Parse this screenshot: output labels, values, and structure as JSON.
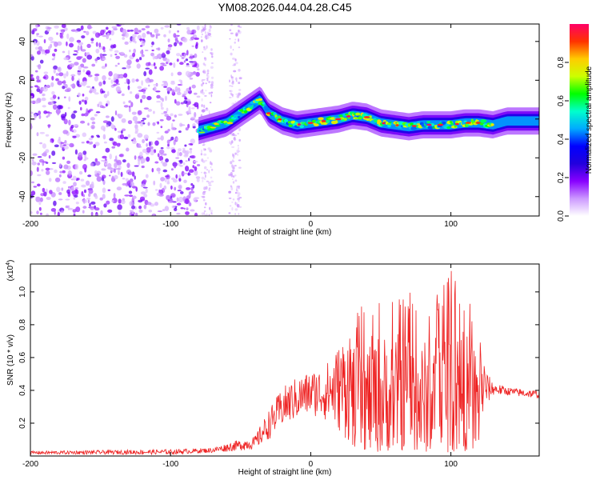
{
  "figure": {
    "title": "YM08.2026.044.04.28.C45"
  },
  "chart_data": [
    {
      "type": "heatmap",
      "name": "spectrogram",
      "xlabel": "Height of straight line (km)",
      "ylabel": "Frequency (Hz)",
      "xlim": [
        -200,
        163
      ],
      "ylim": [
        -50,
        49
      ],
      "xticks": [
        -200,
        -100,
        0,
        100
      ],
      "yticks": [
        -40,
        -20,
        0,
        20,
        40
      ],
      "colorbar": {
        "label": "Normalized spectral amplitude",
        "range": [
          0,
          1
        ],
        "ticks": [
          "0.0",
          "0.2",
          "0.4",
          "0.6",
          "0.8"
        ],
        "colors": [
          "#ffffff",
          "#cc99ff",
          "#8800ff",
          "#2200dd",
          "#0000ff",
          "#00aaff",
          "#00ffcc",
          "#00ff00",
          "#ccff00",
          "#ffcc00",
          "#ff3300",
          "#ff0066"
        ]
      },
      "ridge_track": {
        "x": [
          -80,
          -70,
          -60,
          -50,
          -40,
          -36,
          -30,
          -20,
          -10,
          0,
          10,
          20,
          30,
          40,
          50,
          60,
          70,
          80,
          90,
          100,
          110,
          120,
          130,
          140,
          150,
          163
        ],
        "freq": [
          -6,
          -4,
          -2,
          3,
          8,
          10,
          3,
          -1,
          -3,
          -2,
          -1,
          0,
          2,
          1,
          -2,
          -3,
          -4,
          -3,
          -3,
          -3,
          -2,
          -2,
          -3,
          -1,
          -1,
          -1
        ]
      },
      "noise_region_x": [
        -200,
        -80
      ],
      "noise_bands_x": [
        [
          -78,
          -70
        ],
        [
          -58,
          -50
        ]
      ]
    },
    {
      "type": "line",
      "name": "snr",
      "xlabel": "Height of straight line (km)",
      "ylabel": "SNR (10 * v/v)",
      "scale_label": "(x10",
      "scale_exponent": "4",
      "xlim": [
        -200,
        163
      ],
      "ylim": [
        0,
        1.17
      ],
      "xticks": [
        -200,
        -100,
        0,
        100
      ],
      "yticks": [
        "0.2",
        "0.4",
        "0.6",
        "0.8",
        "1.0"
      ],
      "color": "#ee2222",
      "envelope": {
        "x": [
          -200,
          -100,
          -70,
          -55,
          -40,
          -30,
          -25,
          -20,
          -10,
          0,
          10,
          20,
          30,
          40,
          50,
          60,
          70,
          80,
          90,
          100,
          110,
          120,
          125,
          130,
          140,
          150,
          163
        ],
        "upper": [
          0.03,
          0.04,
          0.05,
          0.09,
          0.12,
          0.28,
          0.35,
          0.42,
          0.48,
          0.52,
          0.55,
          0.68,
          0.85,
          0.95,
          1.0,
          0.98,
          1.02,
          0.93,
          1.0,
          1.17,
          1.0,
          0.85,
          0.52,
          0.45,
          0.42,
          0.41,
          0.4
        ],
        "lower": [
          0.01,
          0.01,
          0.02,
          0.03,
          0.04,
          0.1,
          0.14,
          0.18,
          0.22,
          0.25,
          0.22,
          0.15,
          0.05,
          0.03,
          0.02,
          0.04,
          0.03,
          0.02,
          0.03,
          0.02,
          0.03,
          0.05,
          0.3,
          0.37,
          0.37,
          0.36,
          0.35
        ]
      }
    }
  ]
}
